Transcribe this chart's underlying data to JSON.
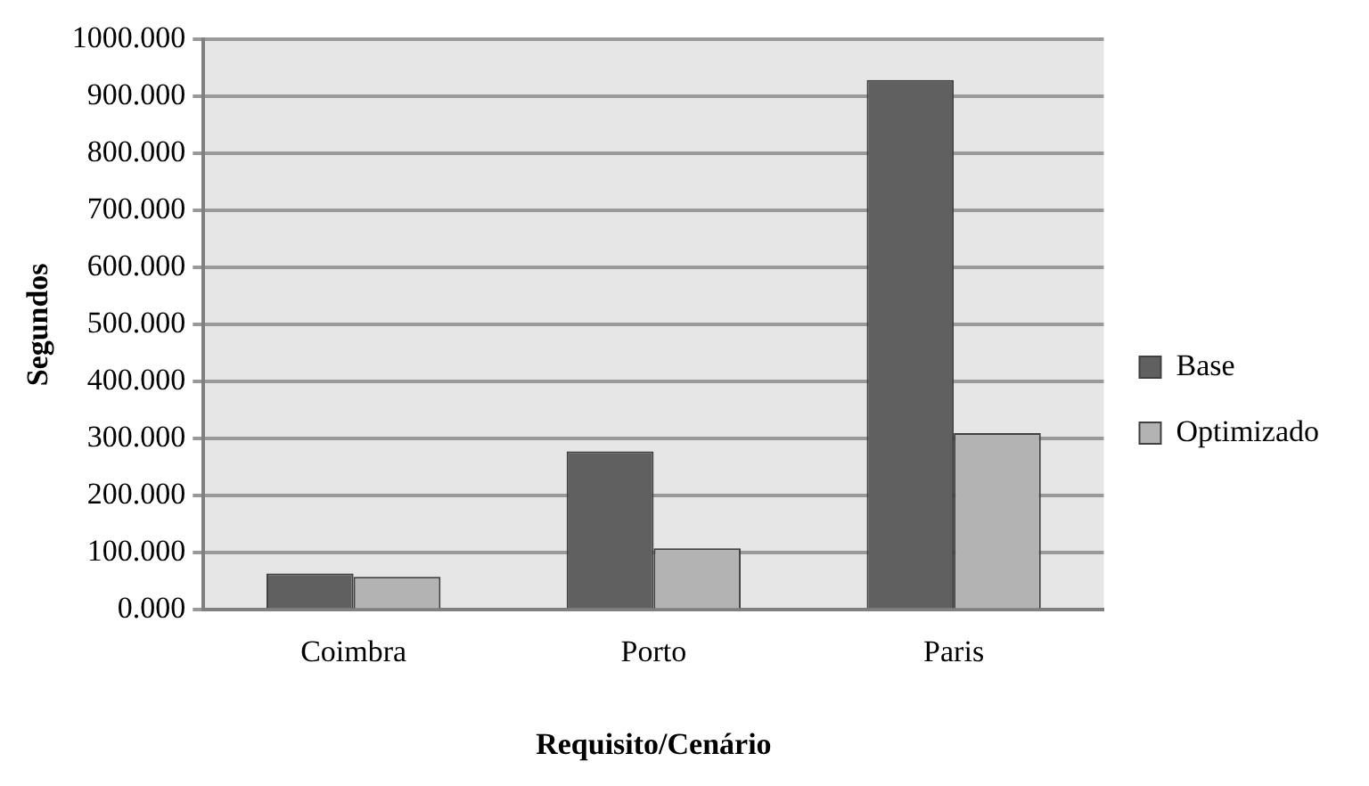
{
  "chart_data": {
    "type": "bar",
    "xlabel": "Requisito/Cenário",
    "ylabel": "Segundos",
    "categories": [
      "Coimbra",
      "Porto",
      "Paris"
    ],
    "series": [
      {
        "name": "Base",
        "color": "#606060",
        "values": [
          64,
          278,
          929
        ]
      },
      {
        "name": "Optimizado",
        "color": "#b3b3b3",
        "values": [
          58,
          108,
          310
        ]
      }
    ],
    "ylim": [
      0,
      1000
    ],
    "yticks": [
      {
        "value": 0,
        "label": "0.000"
      },
      {
        "value": 100,
        "label": "100.000"
      },
      {
        "value": 200,
        "label": "200.000"
      },
      {
        "value": 300,
        "label": "300.000"
      },
      {
        "value": 400,
        "label": "400.000"
      },
      {
        "value": 500,
        "label": "500.000"
      },
      {
        "value": 600,
        "label": "600.000"
      },
      {
        "value": 700,
        "label": "700.000"
      },
      {
        "value": 800,
        "label": "800.000"
      },
      {
        "value": 900,
        "label": "900.000"
      },
      {
        "value": 1000,
        "label": "1000.000"
      }
    ],
    "grid": "y",
    "legend": "right"
  }
}
